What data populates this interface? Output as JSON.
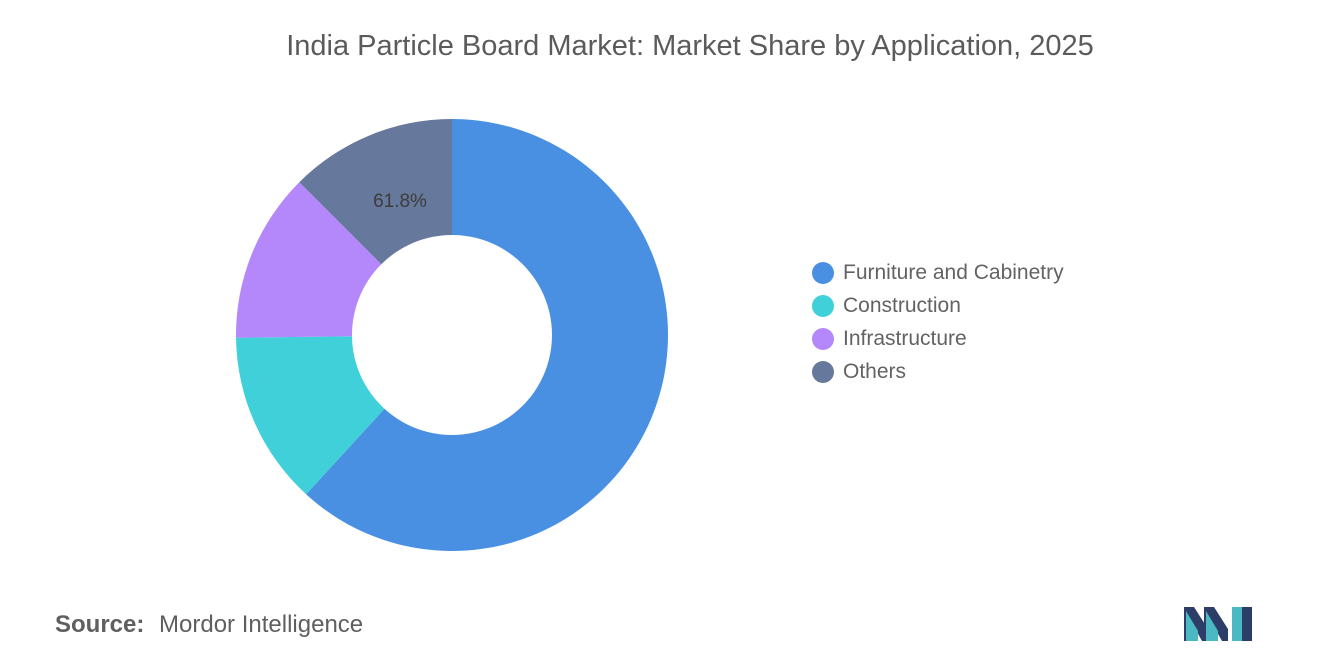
{
  "chart_data": {
    "type": "pie",
    "variant": "donut",
    "title": "India Particle Board Market: Market Share by Application, 2025",
    "categories": [
      "Furniture and Cabinetry",
      "Construction",
      "Infrastructure",
      "Others"
    ],
    "values": [
      61.8,
      13.0,
      12.7,
      12.5
    ],
    "colors": [
      "#4a90e2",
      "#40d0da",
      "#b487fa",
      "#66789c"
    ],
    "data_labels": [
      "61.8%",
      "",
      "",
      ""
    ],
    "legend_position": "right",
    "start_angle_deg": 90
  },
  "legend": {
    "items": [
      {
        "label": "Furniture and Cabinetry",
        "color": "#4a90e2"
      },
      {
        "label": "Construction",
        "color": "#40d0da"
      },
      {
        "label": "Infrastructure",
        "color": "#b487fa"
      },
      {
        "label": "Others",
        "color": "#66789c"
      }
    ]
  },
  "source": {
    "label": "Source:",
    "text": "Mordor Intelligence"
  },
  "logo": {
    "icon": "mordor-intelligence-logo-icon",
    "colors": [
      "#2c3e67",
      "#4ab9c4"
    ]
  }
}
